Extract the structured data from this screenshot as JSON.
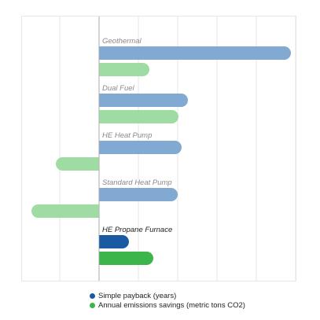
{
  "chart_data": {
    "type": "bar",
    "orientation": "horizontal",
    "categories": [
      "Geothermal",
      "Dual Fuel",
      "HE Heat Pump",
      "Standard Heat Pump",
      "HE Propane Furnace"
    ],
    "series": [
      {
        "name": "Simple payback (years)",
        "values": [
          24.4,
          11.3,
          10.5,
          10.0,
          3.8
        ]
      },
      {
        "name": "Annual emissions savings (metric tons CO2)",
        "values": [
          6.4,
          10.1,
          -5.5,
          -8.6,
          6.9
        ]
      }
    ],
    "xlim": [
      -9,
      25
    ],
    "grid": true,
    "legend_position": "bottom",
    "highlighted_category": "HE Propane Furnace",
    "colors": {
      "payback": "#82a9d1",
      "emissions": "#9fdca4",
      "payback_highlight": "#1a5aa3",
      "emissions_highlight": "#3cb54a",
      "category_label": "#8a8a8a",
      "category_label_highlight": "#222222",
      "grid": "#e4e4e4",
      "axis": "#aaaaaa"
    }
  }
}
